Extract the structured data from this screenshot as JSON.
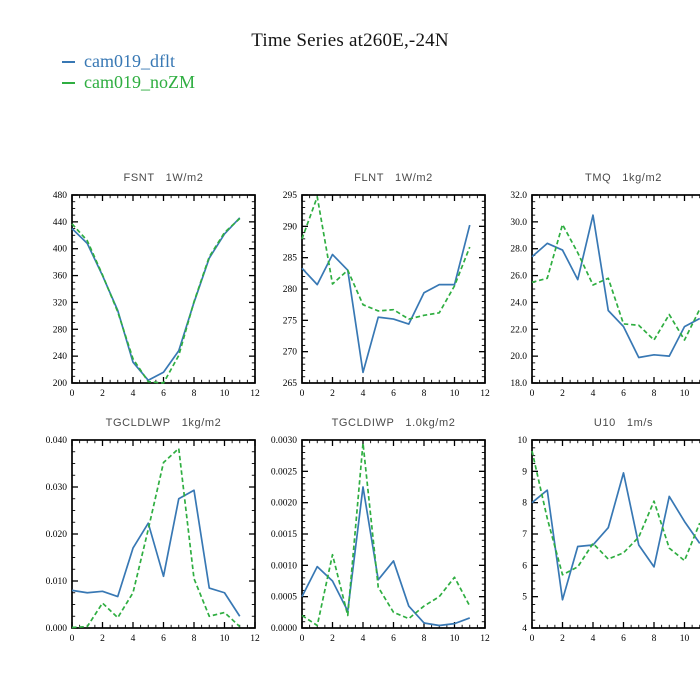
{
  "page": {
    "title": "Time Series at260E,-24N",
    "legend": {
      "items": [
        {
          "label": "cam019_dflt",
          "color": "#3878b4"
        },
        {
          "label": "cam019_noZM",
          "color": "#2fae41"
        }
      ]
    },
    "colors": {
      "frame": "#000000",
      "subplot_title_gray": "#4a4a4a",
      "blue": "#3878b4",
      "green": "#2fae41"
    }
  },
  "chart_data": [
    {
      "type": "line",
      "name": "FSNT",
      "units": "1W/m2",
      "x": [
        0,
        1,
        2,
        3,
        4,
        5,
        6,
        7,
        8,
        9,
        10,
        11
      ],
      "xlim": [
        0,
        12
      ],
      "xtick_step": 2,
      "xminor_step": 0.5,
      "ylim": [
        200,
        480
      ],
      "ytick_step": 40,
      "yminor_div": 4,
      "ydecimals": 0,
      "grid": false,
      "legend_position": "figure-top-left",
      "series": [
        {
          "name": "cam019_dflt",
          "color": "#3878b4",
          "line_style": "solid",
          "values": [
            430,
            408,
            360,
            308,
            231,
            204,
            216,
            248,
            320,
            386,
            422,
            446
          ]
        },
        {
          "name": "cam019_noZM",
          "color": "#2fae41",
          "line_style": "dashed",
          "values": [
            437,
            412,
            361,
            306,
            236,
            202,
            200,
            241,
            321,
            388,
            424,
            445
          ]
        }
      ]
    },
    {
      "type": "line",
      "name": "FLNT",
      "units": "1W/m2",
      "x": [
        0,
        1,
        2,
        3,
        4,
        5,
        6,
        7,
        8,
        9,
        10,
        11
      ],
      "xlim": [
        0,
        12
      ],
      "xtick_step": 2,
      "xminor_step": 0.5,
      "ylim": [
        265,
        295
      ],
      "ytick_step": 5,
      "yminor_div": 5,
      "ydecimals": 0,
      "grid": false,
      "series": [
        {
          "name": "cam019_dflt",
          "color": "#3878b4",
          "line_style": "solid",
          "values": [
            283.3,
            280.7,
            285.5,
            283.0,
            266.7,
            275.5,
            275.2,
            274.4,
            279.4,
            280.7,
            280.7,
            290.2
          ]
        },
        {
          "name": "cam019_noZM",
          "color": "#2fae41",
          "line_style": "dashed",
          "values": [
            288.0,
            294.7,
            280.8,
            283.0,
            277.5,
            276.5,
            276.7,
            275.2,
            275.8,
            276.2,
            280.5,
            286.7
          ]
        }
      ]
    },
    {
      "type": "line",
      "name": "TMQ",
      "units": "1kg/m2",
      "x": [
        0,
        1,
        2,
        3,
        4,
        5,
        6,
        7,
        8,
        9,
        10,
        11
      ],
      "xlim": [
        0,
        12
      ],
      "xtick_step": 2,
      "xminor_step": 0.5,
      "ylim": [
        18.0,
        32.0
      ],
      "ytick_step": 2,
      "yminor_div": 4,
      "ydecimals": 1,
      "grid": false,
      "series": [
        {
          "name": "cam019_dflt",
          "color": "#3878b4",
          "line_style": "solid",
          "values": [
            27.4,
            28.4,
            27.9,
            25.7,
            30.5,
            23.4,
            22.2,
            19.9,
            20.1,
            20.0,
            22.2,
            22.8
          ]
        },
        {
          "name": "cam019_noZM",
          "color": "#2fae41",
          "line_style": "dashed",
          "values": [
            25.5,
            25.8,
            29.8,
            27.7,
            25.3,
            25.8,
            22.4,
            22.3,
            21.2,
            23.1,
            21.2,
            23.5
          ]
        }
      ]
    },
    {
      "type": "line",
      "name": "TGCLDLWP",
      "units": "1kg/m2",
      "x": [
        0,
        1,
        2,
        3,
        4,
        5,
        6,
        7,
        8,
        9,
        10,
        11
      ],
      "xlim": [
        0,
        12
      ],
      "xtick_step": 2,
      "xminor_step": 0.5,
      "ylim": [
        0.0,
        0.04
      ],
      "ytick_step": 0.01,
      "yminor_div": 4,
      "ydecimals": 3,
      "grid": false,
      "series": [
        {
          "name": "cam019_dflt",
          "color": "#3878b4",
          "line_style": "solid",
          "values": [
            0.008,
            0.0075,
            0.0078,
            0.0067,
            0.017,
            0.0223,
            0.011,
            0.0275,
            0.0293,
            0.0085,
            0.0075,
            0.0025
          ]
        },
        {
          "name": "cam019_noZM",
          "color": "#2fae41",
          "line_style": "dashed",
          "values": [
            0.0001,
            0.0003,
            0.0053,
            0.0022,
            0.0075,
            0.021,
            0.0352,
            0.0382,
            0.0105,
            0.0025,
            0.0033,
            0.0003
          ]
        }
      ]
    },
    {
      "type": "line",
      "name": "TGCLDIWP",
      "units": "1.0kg/m2",
      "x": [
        0,
        1,
        2,
        3,
        4,
        5,
        6,
        7,
        8,
        9,
        10,
        11
      ],
      "xlim": [
        0,
        12
      ],
      "xtick_step": 2,
      "xminor_step": 0.5,
      "ylim": [
        0.0,
        0.003
      ],
      "ytick_step": 0.0005,
      "yminor_div": 5,
      "ydecimals": 4,
      "grid": false,
      "series": [
        {
          "name": "cam019_dflt",
          "color": "#3878b4",
          "line_style": "solid",
          "values": [
            0.0005,
            0.00098,
            0.00075,
            0.00027,
            0.00225,
            0.00077,
            0.00107,
            0.00035,
            8e-05,
            4e-05,
            7e-05,
            0.00016
          ]
        },
        {
          "name": "cam019_noZM",
          "color": "#2fae41",
          "line_style": "dashed",
          "values": [
            0.0002,
            4e-05,
            0.00117,
            0.0002,
            0.00295,
            0.00065,
            0.00025,
            0.00015,
            0.00035,
            0.0005,
            0.00081,
            0.00035
          ]
        }
      ]
    },
    {
      "type": "line",
      "name": "U10",
      "units": "1m/s",
      "x": [
        0,
        1,
        2,
        3,
        4,
        5,
        6,
        7,
        8,
        9,
        10,
        11
      ],
      "xlim": [
        0,
        12
      ],
      "xtick_step": 2,
      "xminor_step": 0.5,
      "ylim": [
        4,
        10
      ],
      "ytick_step": 1,
      "yminor_div": 4,
      "ydecimals": 0,
      "grid": false,
      "series": [
        {
          "name": "cam019_dflt",
          "color": "#3878b4",
          "line_style": "solid",
          "values": [
            8.0,
            8.4,
            4.9,
            6.6,
            6.65,
            7.2,
            8.95,
            6.65,
            5.95,
            8.2,
            7.4,
            6.7
          ]
        },
        {
          "name": "cam019_noZM",
          "color": "#2fae41",
          "line_style": "dashed",
          "values": [
            9.65,
            7.5,
            5.7,
            5.95,
            6.7,
            6.2,
            6.4,
            6.9,
            8.05,
            6.55,
            6.15,
            7.35
          ]
        }
      ]
    }
  ]
}
